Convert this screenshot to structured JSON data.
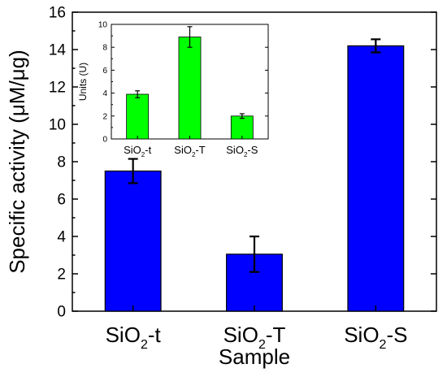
{
  "chart_data": [
    {
      "type": "bar",
      "categories": [
        "SiO2-t",
        "SiO2-T",
        "SiO2-S"
      ],
      "category_labels": [
        {
          "base": "SiO",
          "sub": "2",
          "suffix": "-t"
        },
        {
          "base": "SiO",
          "sub": "2",
          "suffix": "-T"
        },
        {
          "base": "SiO",
          "sub": "2",
          "suffix": "-S"
        }
      ],
      "values": [
        7.5,
        3.05,
        14.2
      ],
      "errors": [
        0.65,
        0.95,
        0.35
      ],
      "xlabel": "Sample",
      "ylabel": "Specific activity (μM/μg)",
      "ylim": [
        0,
        16
      ],
      "yticks": [
        0,
        2,
        4,
        6,
        8,
        10,
        12,
        14,
        16
      ],
      "bar_color": "#0000ff",
      "grid": false
    },
    {
      "type": "bar",
      "role": "inset",
      "categories": [
        "SiO2-t",
        "SiO2-T",
        "SiO2-S"
      ],
      "category_labels": [
        {
          "base": "SiO",
          "sub": "2",
          "suffix": "-t"
        },
        {
          "base": "SiO",
          "sub": "2",
          "suffix": "-T"
        },
        {
          "base": "SiO",
          "sub": "2",
          "suffix": "-S"
        }
      ],
      "values": [
        3.9,
        8.9,
        2.0
      ],
      "errors": [
        0.3,
        0.9,
        0.2
      ],
      "xlabel": "",
      "ylabel": "Units (U)",
      "ylim": [
        0,
        10
      ],
      "yticks": [
        0,
        2,
        4,
        6,
        8,
        10
      ],
      "bar_color": "#00ff00",
      "grid": false
    }
  ]
}
